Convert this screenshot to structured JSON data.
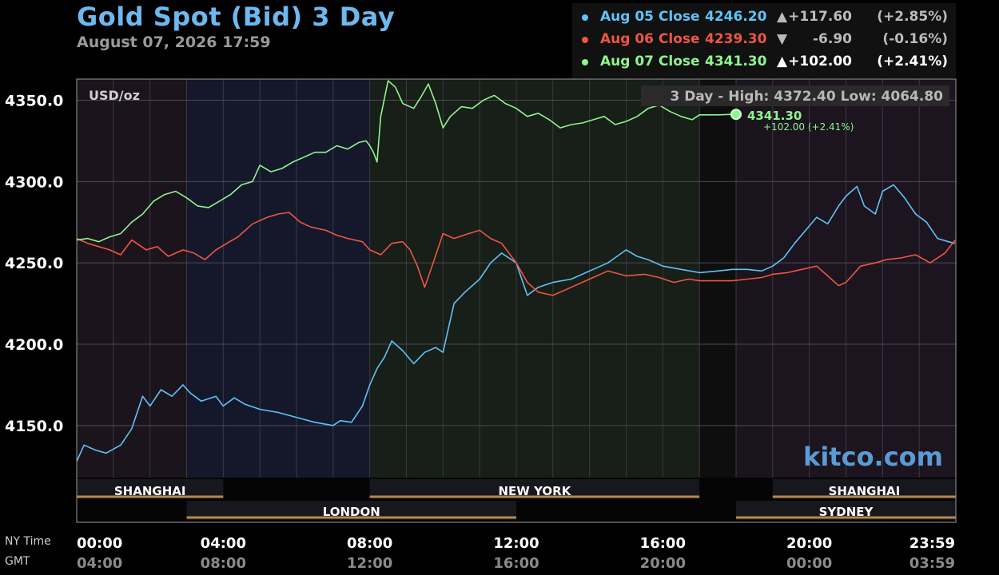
{
  "title": "Gold Spot (Bid) 3 Day",
  "datetime": "August 07, 2026 17:59",
  "legend": [
    {
      "label": "Aug 05 Close",
      "close": "4246.20",
      "arrow": "▲",
      "change": "+117.60",
      "pct": "(+2.85%)",
      "color": "#5fc3f5"
    },
    {
      "label": "Aug 06 Close",
      "close": "4239.30",
      "arrow": "▼",
      "change": "-6.90",
      "pct": "(-0.16%)",
      "color": "#ee5544"
    },
    {
      "label": "Aug 07 Close",
      "close": "4341.30",
      "arrow": "▲",
      "change": "+102.00",
      "pct": "(+2.41%)",
      "color": "#8ef58e"
    }
  ],
  "unit_label": "USD/oz",
  "range_label": "3 Day - High: 4372.40  Low: 4064.80",
  "last_value": "4341.30",
  "last_change": "+102.00 (+2.41%)",
  "watermark": "kitco.com",
  "footer": {
    "row1_label": "NY Time",
    "row2_label": "GMT"
  },
  "sessions": [
    {
      "name": "SHANGHAI",
      "start": 0,
      "end": 4,
      "row": 1
    },
    {
      "name": "NEW YORK",
      "start": 8,
      "end": 17,
      "row": 1
    },
    {
      "name": "SHANGHAI",
      "start": 19,
      "end": 24,
      "row": 1
    },
    {
      "name": "LONDON",
      "start": 3,
      "end": 12,
      "row": 2
    },
    {
      "name": "SYDNEY",
      "start": 18,
      "end": 24,
      "row": 2
    }
  ],
  "chart_data": {
    "type": "line",
    "ylim": [
      4118,
      4363
    ],
    "xlim": [
      0,
      24
    ],
    "y_ticks": [
      4150,
      4200,
      4250,
      4300,
      4350
    ],
    "y_tick_labels": [
      "4150.0",
      "4200.0",
      "4250.0",
      "4300.0",
      "4350.0"
    ],
    "x_ticks": [
      0,
      4,
      8,
      12,
      16,
      20,
      23.98
    ],
    "x_tick_labels_ny": [
      "00:00",
      "04:00",
      "08:00",
      "12:00",
      "16:00",
      "20:00",
      "23:59"
    ],
    "x_tick_labels_gmt": [
      "04:00",
      "08:00",
      "12:00",
      "16:00",
      "20:00",
      "00:00",
      "03:59"
    ],
    "series": [
      {
        "name": "Aug 05",
        "color": "#5fc3f5",
        "x": [
          0,
          0.2,
          0.5,
          0.8,
          1.2,
          1.5,
          1.8,
          2.0,
          2.3,
          2.6,
          2.9,
          3.1,
          3.4,
          3.8,
          4.0,
          4.3,
          4.6,
          5.0,
          5.5,
          6.0,
          6.5,
          7.0,
          7.2,
          7.5,
          7.8,
          8.0,
          8.2,
          8.4,
          8.6,
          8.9,
          9.2,
          9.5,
          9.8,
          10.0,
          10.3,
          10.6,
          11.0,
          11.3,
          11.6,
          12.0,
          12.3,
          12.6,
          13.0,
          13.5,
          14.0,
          14.5,
          15.0,
          15.3,
          15.6,
          16.0,
          16.5,
          17.0,
          17.5,
          17.9,
          18.3,
          18.7,
          19.0,
          19.3,
          19.6,
          19.9,
          20.2,
          20.5,
          20.8,
          21.0,
          21.3,
          21.5,
          21.8,
          22.0,
          22.3,
          22.6,
          22.9,
          23.2,
          23.5,
          23.8,
          23.98
        ],
        "y": [
          4128,
          4138,
          4135,
          4133,
          4138,
          4148,
          4168,
          4162,
          4172,
          4168,
          4175,
          4170,
          4165,
          4168,
          4162,
          4167,
          4163,
          4160,
          4158,
          4155,
          4152,
          4150,
          4153,
          4152,
          4162,
          4175,
          4185,
          4192,
          4202,
          4196,
          4188,
          4195,
          4198,
          4195,
          4225,
          4232,
          4240,
          4250,
          4256,
          4250,
          4230,
          4235,
          4238,
          4240,
          4245,
          4250,
          4258,
          4254,
          4252,
          4248,
          4246,
          4244,
          4245,
          4246,
          4246,
          4245,
          4248,
          4253,
          4262,
          4270,
          4278,
          4274,
          4285,
          4291,
          4297,
          4285,
          4280,
          4294,
          4298,
          4290,
          4280,
          4275,
          4265,
          4263,
          4262
        ]
      },
      {
        "name": "Aug 06",
        "color": "#ee5544",
        "x": [
          0,
          0.3,
          0.6,
          0.9,
          1.2,
          1.5,
          1.9,
          2.2,
          2.5,
          2.9,
          3.2,
          3.5,
          3.8,
          4.1,
          4.4,
          4.8,
          5.2,
          5.5,
          5.8,
          6.1,
          6.4,
          6.8,
          7.1,
          7.4,
          7.8,
          8.0,
          8.3,
          8.6,
          8.9,
          9.1,
          9.3,
          9.5,
          9.7,
          10.0,
          10.3,
          10.7,
          11.0,
          11.3,
          11.6,
          12.0,
          12.3,
          12.6,
          13.0,
          13.5,
          14.0,
          14.5,
          15.0,
          15.5,
          15.9,
          16.3,
          16.7,
          17.0,
          17.5,
          17.9,
          18.3,
          18.7,
          19.0,
          19.4,
          19.8,
          20.2,
          20.5,
          20.8,
          21.0,
          21.4,
          21.8,
          22.1,
          22.5,
          22.9,
          23.3,
          23.7,
          23.98
        ],
        "y": [
          4265,
          4262,
          4260,
          4258,
          4255,
          4264,
          4258,
          4260,
          4254,
          4258,
          4256,
          4252,
          4258,
          4262,
          4266,
          4274,
          4278,
          4280,
          4281,
          4275,
          4272,
          4270,
          4267,
          4265,
          4263,
          4258,
          4255,
          4262,
          4263,
          4258,
          4248,
          4235,
          4248,
          4268,
          4265,
          4268,
          4270,
          4265,
          4262,
          4250,
          4238,
          4232,
          4230,
          4235,
          4240,
          4245,
          4242,
          4243,
          4241,
          4238,
          4240,
          4239,
          4239,
          4239,
          4240,
          4241,
          4243,
          4244,
          4246,
          4248,
          4242,
          4236,
          4238,
          4248,
          4250,
          4252,
          4253,
          4255,
          4250,
          4256,
          4264
        ]
      },
      {
        "name": "Aug 07",
        "color": "#8ef58e",
        "x": [
          0,
          0.3,
          0.6,
          0.9,
          1.2,
          1.5,
          1.8,
          2.1,
          2.4,
          2.7,
          3.0,
          3.3,
          3.6,
          3.9,
          4.2,
          4.5,
          4.8,
          5.0,
          5.3,
          5.6,
          5.9,
          6.2,
          6.5,
          6.8,
          7.1,
          7.4,
          7.7,
          7.9,
          8.0,
          8.1,
          8.2,
          8.3,
          8.5,
          8.7,
          8.9,
          9.2,
          9.4,
          9.6,
          9.8,
          10.0,
          10.2,
          10.5,
          10.8,
          11.1,
          11.4,
          11.7,
          12.0,
          12.3,
          12.6,
          12.9,
          13.2,
          13.5,
          13.8,
          14.1,
          14.4,
          14.7,
          15.0,
          15.3,
          15.6,
          15.9,
          16.2,
          16.5,
          16.8,
          17.0,
          17.5,
          17.9
        ],
        "y": [
          4264,
          4265,
          4263,
          4266,
          4268,
          4275,
          4280,
          4288,
          4292,
          4294,
          4290,
          4285,
          4284,
          4288,
          4292,
          4298,
          4300,
          4310,
          4306,
          4308,
          4312,
          4315,
          4318,
          4318,
          4322,
          4320,
          4324,
          4325,
          4322,
          4318,
          4312,
          4340,
          4362,
          4358,
          4348,
          4345,
          4352,
          4360,
          4348,
          4333,
          4340,
          4346,
          4345,
          4350,
          4353,
          4348,
          4345,
          4340,
          4342,
          4338,
          4333,
          4335,
          4336,
          4338,
          4340,
          4335,
          4337,
          4340,
          4345,
          4347,
          4343,
          4340,
          4338,
          4341,
          4341,
          4341.3
        ]
      }
    ]
  }
}
